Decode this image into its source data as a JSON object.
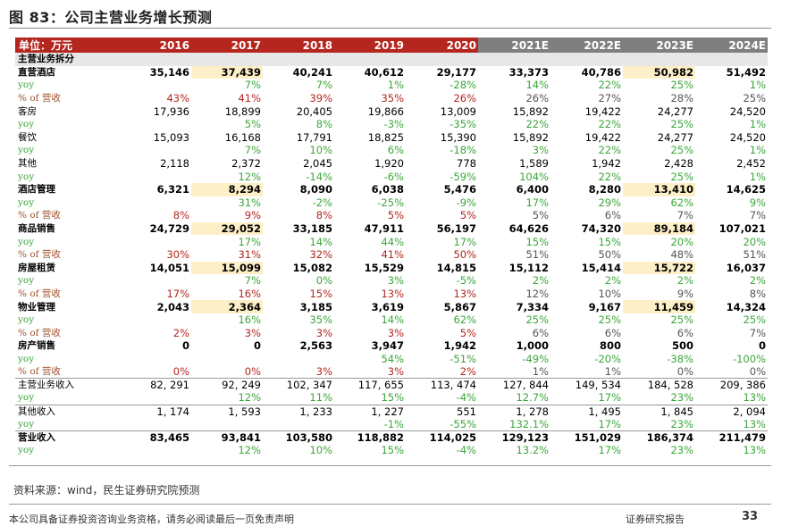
{
  "title": "图 83：公司主营业务增长预测",
  "header": {
    "unit": "单位：万元",
    "years": [
      "2016",
      "2017",
      "2018",
      "2019",
      "2020",
      "2021E",
      "2022E",
      "2023E",
      "2024E"
    ]
  },
  "rows": [
    {
      "type": "section",
      "label": "主营业务拆分",
      "values": [
        "",
        "",
        "",
        "",
        "",
        "",
        "",
        "",
        ""
      ]
    },
    {
      "type": "main",
      "label": "直营酒店",
      "values": [
        "35,146",
        "37,439",
        "40,241",
        "40,612",
        "29,177",
        "33,373",
        "40,786",
        "50,982",
        "51,492"
      ],
      "hl": [
        1,
        7
      ]
    },
    {
      "type": "yoy",
      "label": "yoy",
      "values": [
        "",
        "7%",
        "7%",
        "1%",
        "-28%",
        "14%",
        "22%",
        "25%",
        "1%"
      ]
    },
    {
      "type": "pct",
      "label": "% of 营收",
      "values": [
        "43%",
        "41%",
        "39%",
        "35%",
        "26%",
        "26%",
        "27%",
        "28%",
        "25%"
      ]
    },
    {
      "type": "sub",
      "label": "客房",
      "values": [
        "17,936",
        "18,899",
        "20,405",
        "19,866",
        "13,009",
        "15,892",
        "19,422",
        "24,277",
        "24,520"
      ]
    },
    {
      "type": "yoy",
      "label": "yoy",
      "values": [
        "",
        "5%",
        "8%",
        "-3%",
        "-35%",
        "22%",
        "22%",
        "25%",
        "1%"
      ]
    },
    {
      "type": "sub",
      "label": "餐饮",
      "values": [
        "15,093",
        "16,168",
        "17,791",
        "18,825",
        "15,390",
        "15,892",
        "19,422",
        "24,277",
        "24,520"
      ]
    },
    {
      "type": "yoy",
      "label": "yoy",
      "values": [
        "",
        "7%",
        "10%",
        "6%",
        "-18%",
        "3%",
        "22%",
        "25%",
        "1%"
      ]
    },
    {
      "type": "sub",
      "label": "其他",
      "values": [
        "2,118",
        "2,372",
        "2,045",
        "1,920",
        "778",
        "1,589",
        "1,942",
        "2,428",
        "2,452"
      ]
    },
    {
      "type": "yoy",
      "label": "yoy",
      "values": [
        "",
        "12%",
        "-14%",
        "-6%",
        "-59%",
        "104%",
        "22%",
        "25%",
        "1%"
      ]
    },
    {
      "type": "main",
      "label": "酒店管理",
      "values": [
        "6,321",
        "8,294",
        "8,090",
        "6,038",
        "5,476",
        "6,400",
        "8,280",
        "13,410",
        "14,625"
      ],
      "hl": [
        1,
        7
      ]
    },
    {
      "type": "yoy",
      "label": "yoy",
      "values": [
        "",
        "31%",
        "-2%",
        "-25%",
        "-9%",
        "17%",
        "29%",
        "62%",
        "9%"
      ]
    },
    {
      "type": "pct",
      "label": "% of 营收",
      "values": [
        "8%",
        "9%",
        "8%",
        "5%",
        "5%",
        "5%",
        "6%",
        "7%",
        "7%"
      ]
    },
    {
      "type": "main",
      "label": "商品销售",
      "values": [
        "24,729",
        "29,052",
        "33,185",
        "47,911",
        "56,197",
        "64,626",
        "74,320",
        "89,184",
        "107,021"
      ],
      "hl": [
        1,
        7
      ]
    },
    {
      "type": "yoy",
      "label": "yoy",
      "values": [
        "",
        "17%",
        "14%",
        "44%",
        "17%",
        "15%",
        "15%",
        "20%",
        "20%"
      ]
    },
    {
      "type": "pct",
      "label": "% of 营收",
      "values": [
        "30%",
        "31%",
        "32%",
        "41%",
        "50%",
        "51%",
        "50%",
        "48%",
        "51%"
      ]
    },
    {
      "type": "main",
      "label": "房屋租赁",
      "values": [
        "14,051",
        "15,099",
        "15,082",
        "15,529",
        "14,815",
        "15,112",
        "15,414",
        "15,722",
        "16,037"
      ],
      "hl": [
        1,
        7
      ]
    },
    {
      "type": "yoy",
      "label": "yoy",
      "values": [
        "",
        "7%",
        "0%",
        "3%",
        "-5%",
        "2%",
        "2%",
        "2%",
        "2%"
      ]
    },
    {
      "type": "pct",
      "label": "% of 营收",
      "values": [
        "17%",
        "16%",
        "15%",
        "13%",
        "13%",
        "12%",
        "10%",
        "9%",
        "8%"
      ]
    },
    {
      "type": "main",
      "label": "物业管理",
      "values": [
        "2,043",
        "2,364",
        "3,185",
        "3,619",
        "5,867",
        "7,334",
        "9,167",
        "11,459",
        "14,324"
      ],
      "hl": [
        1,
        7
      ]
    },
    {
      "type": "yoy",
      "label": "yoy",
      "values": [
        "",
        "16%",
        "35%",
        "14%",
        "62%",
        "25%",
        "25%",
        "25%",
        "25%"
      ]
    },
    {
      "type": "pct",
      "label": "% of 营收",
      "values": [
        "2%",
        "3%",
        "3%",
        "3%",
        "5%",
        "6%",
        "6%",
        "6%",
        "7%"
      ]
    },
    {
      "type": "main",
      "label": "房产销售",
      "values": [
        "0",
        "0",
        "2,563",
        "3,947",
        "1,942",
        "1,000",
        "800",
        "500",
        "0"
      ]
    },
    {
      "type": "yoy",
      "label": "yoy",
      "values": [
        "",
        "",
        "",
        "54%",
        "-51%",
        "-49%",
        "-20%",
        "-38%",
        "-100%"
      ]
    },
    {
      "type": "pct",
      "label": "% of 营收",
      "values": [
        "0%",
        "0%",
        "3%",
        "3%",
        "2%",
        "1%",
        "1%",
        "0%",
        "0%"
      ]
    },
    {
      "type": "tot",
      "label": "主营业务收入",
      "values": [
        "82, 291",
        "92, 249",
        "102, 347",
        "117, 655",
        "113, 474",
        "127, 844",
        "149, 534",
        "184, 528",
        "209, 386"
      ],
      "topline": true
    },
    {
      "type": "yoy",
      "label": "yoy",
      "values": [
        "",
        "12%",
        "11%",
        "15%",
        "-4%",
        "12.7%",
        "17%",
        "23%",
        "13%"
      ]
    },
    {
      "type": "tot",
      "label": "其他收入",
      "values": [
        "1, 174",
        "1, 593",
        "1, 233",
        "1, 227",
        "551",
        "1, 278",
        "1, 495",
        "1, 845",
        "2, 094"
      ],
      "topline": true
    },
    {
      "type": "yoy",
      "label": "yoy",
      "values": [
        "",
        "",
        "",
        "-1%",
        "-55%",
        "132.1%",
        "17%",
        "23%",
        "13%"
      ]
    },
    {
      "type": "totb",
      "label": "营业收入",
      "values": [
        "83,465",
        "93,841",
        "103,580",
        "118,882",
        "114,025",
        "129,123",
        "151,029",
        "186,374",
        "211,479"
      ],
      "topline": true
    },
    {
      "type": "yoy",
      "label": "yoy",
      "values": [
        "",
        "12%",
        "10%",
        "15%",
        "-4%",
        "13.2%",
        "17%",
        "23%",
        "13%"
      ]
    }
  ],
  "source": "资料来源：wind，民生证券研究院预测",
  "footer": {
    "disclaimer": "本公司具备证券投资咨询业务资格，请务必阅读最后一页免责声明",
    "report_type": "证券研究报告",
    "page": "33"
  }
}
